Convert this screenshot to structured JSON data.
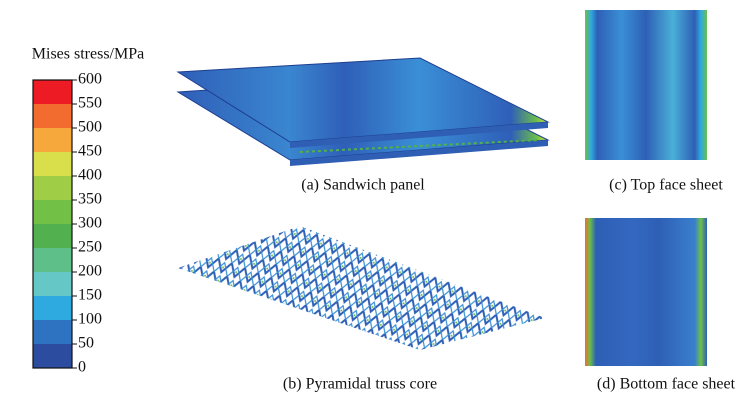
{
  "legend": {
    "title": "Mises stress/MPa",
    "ticks": [
      600,
      550,
      500,
      450,
      400,
      350,
      300,
      250,
      200,
      150,
      100,
      50,
      0
    ],
    "colors": [
      "#ed1c24",
      "#f26b2f",
      "#f7a83c",
      "#d9df4a",
      "#9fcd46",
      "#72c046",
      "#52b04f",
      "#5fbf88",
      "#66c8c6",
      "#2faae0",
      "#2e72c2",
      "#2b4c9f"
    ]
  },
  "captions": [
    "(a) Sandwich panel",
    "(b) Pyramidal truss core",
    "(c) Top face sheet",
    "(d) Bottom face sheet"
  ]
}
